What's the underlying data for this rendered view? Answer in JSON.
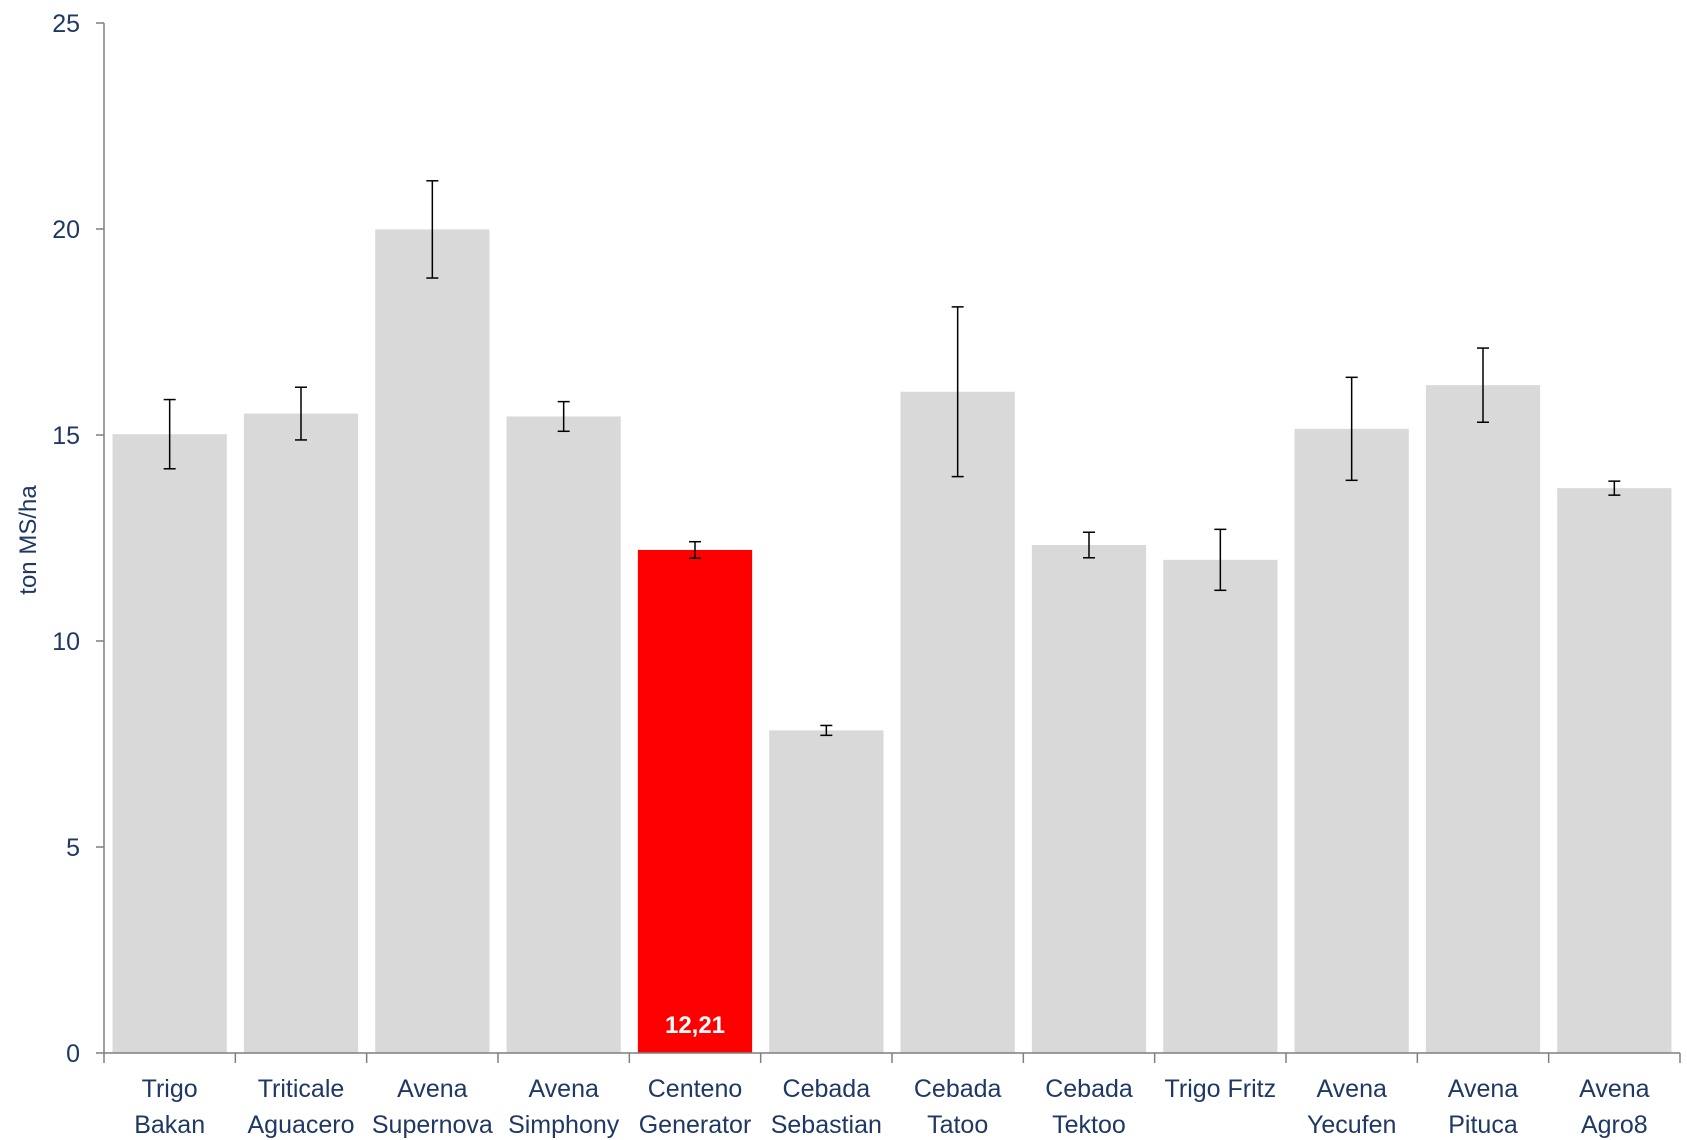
{
  "chart_data": {
    "type": "bar",
    "title": "",
    "xlabel": "",
    "ylabel": "ton MS/ha",
    "ylim": [
      0,
      25
    ],
    "yticks": [
      "0",
      "5",
      "10",
      "15",
      "20",
      "25"
    ],
    "grid": false,
    "legend": "none",
    "categories": [
      [
        "Trigo",
        "Bakan"
      ],
      [
        "Triticale",
        "Aguacero"
      ],
      [
        "Avena",
        "Supernova"
      ],
      [
        "Avena",
        "Simphony"
      ],
      [
        "Centeno",
        "Generator"
      ],
      [
        "Cebada",
        "Sebastian"
      ],
      [
        "Cebada",
        "Tatoo"
      ],
      [
        "Cebada",
        "Tektoo"
      ],
      [
        "Trigo Fritz"
      ],
      [
        "Avena",
        "Yecufen"
      ],
      [
        "Avena",
        "Pituca"
      ],
      [
        "Avena",
        "Agro8"
      ]
    ],
    "values": [
      15.02,
      15.52,
      19.99,
      15.45,
      12.21,
      7.83,
      16.05,
      12.33,
      11.97,
      15.15,
      16.21,
      13.71
    ],
    "error": [
      0.84,
      0.64,
      1.18,
      0.36,
      0.2,
      0.12,
      2.06,
      0.31,
      0.74,
      1.25,
      0.9,
      0.17
    ],
    "highlight_index": 4,
    "data_labels": [
      {
        "index": 4,
        "text": "12,21"
      }
    ],
    "colors": {
      "bar": "#D9D9D9",
      "highlight": "#FF0000",
      "axis": "#7F7F7F",
      "text": "#1F3864",
      "error_bar": "#000000",
      "data_label": "#FFFFFF"
    }
  }
}
